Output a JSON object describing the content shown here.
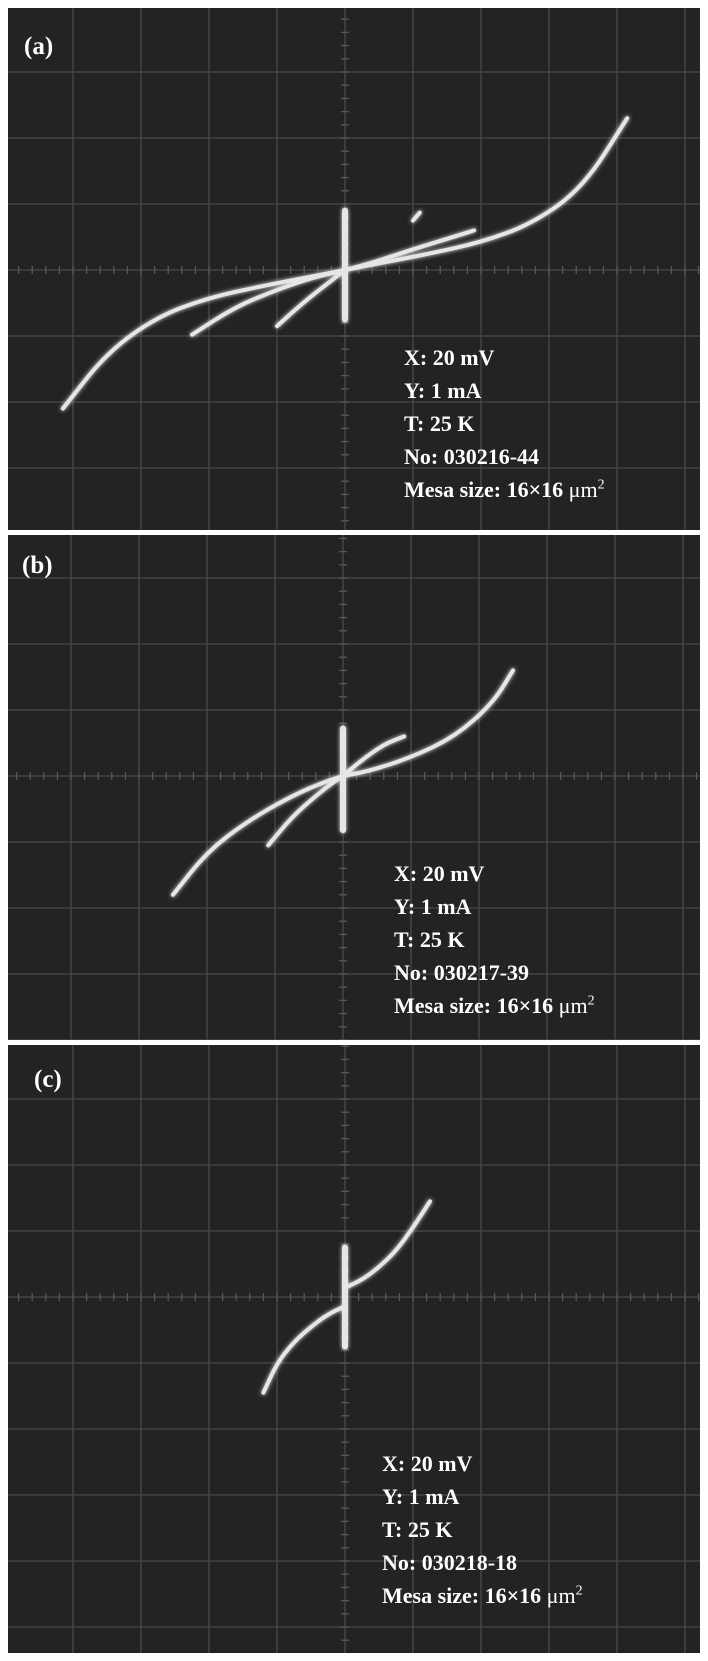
{
  "chart_data": [
    {
      "type": "line",
      "panel_label": "(a)",
      "settings": {
        "x_scale": "X: 20 mV",
        "y_scale": "Y:  1  mA",
        "temperature": "T:  25 K",
        "sample_no": "No: 030216-44",
        "mesa_prefix": "Mesa size: 16×16 ",
        "mesa_mu": "μ",
        "mesa_unit": "m",
        "mesa_exp": "2"
      },
      "axes": {
        "x_unit": "mV",
        "y_unit": "mA",
        "x_per_div": 20,
        "y_per_div": 1,
        "xlim": [
          -100,
          100
        ],
        "ylim": [
          -4,
          4
        ],
        "grid": true
      },
      "series": [
        {
          "x": [
            -83,
            -70,
            -55,
            -40,
            -25,
            -12,
            -4,
            0
          ],
          "y": [
            -2.1,
            -1.25,
            -0.7,
            -0.42,
            -0.25,
            -0.12,
            -0.04,
            0
          ]
        },
        {
          "x": [
            0,
            4,
            12,
            25,
            40,
            55,
            70,
            83
          ],
          "y": [
            0,
            0.04,
            0.12,
            0.25,
            0.42,
            0.7,
            1.25,
            2.3
          ]
        },
        {
          "x": [
            -45,
            -32,
            -20,
            -10,
            0
          ],
          "y": [
            -0.98,
            -0.55,
            -0.3,
            -0.12,
            0
          ]
        },
        {
          "x": [
            -20,
            -12,
            -5,
            0
          ],
          "y": [
            -0.85,
            -0.48,
            -0.2,
            0
          ]
        },
        {
          "x": [
            0,
            8,
            18,
            28,
            38
          ],
          "y": [
            0,
            0.11,
            0.28,
            0.44,
            0.6
          ]
        },
        {
          "x": [
            20,
            22
          ],
          "y": [
            0.75,
            0.87
          ]
        },
        {
          "x": [
            0,
            0
          ],
          "y": [
            -0.75,
            0.9
          ]
        }
      ]
    },
    {
      "type": "line",
      "panel_label": "(b)",
      "settings": {
        "x_scale": "X: 20 mV",
        "y_scale": "Y:  1  mA",
        "temperature": "T:  25 K",
        "sample_no": "No: 030217-39",
        "mesa_prefix": "Mesa size: 16×16 ",
        "mesa_mu": "μ",
        "mesa_unit": "m",
        "mesa_exp": "2"
      },
      "axes": {
        "x_unit": "mV",
        "y_unit": "mA",
        "x_per_div": 20,
        "y_per_div": 1,
        "xlim": [
          -100,
          100
        ],
        "ylim": [
          -4,
          4
        ],
        "grid": true
      },
      "series": [
        {
          "x": [
            -50,
            -40,
            -28,
            -15,
            -5,
            0
          ],
          "y": [
            -1.8,
            -1.15,
            -0.68,
            -0.3,
            -0.08,
            0
          ]
        },
        {
          "x": [
            0,
            8,
            20,
            33,
            44,
            50
          ],
          "y": [
            0,
            0.08,
            0.28,
            0.6,
            1.1,
            1.6
          ]
        },
        {
          "x": [
            -22,
            -15,
            -8,
            -3,
            0
          ],
          "y": [
            -1.05,
            -0.62,
            -0.3,
            -0.1,
            0
          ]
        },
        {
          "x": [
            0,
            5,
            12,
            18
          ],
          "y": [
            0,
            0.22,
            0.48,
            0.6
          ]
        },
        {
          "x": [
            0,
            0
          ],
          "y": [
            -0.82,
            0.72
          ]
        }
      ]
    },
    {
      "type": "line",
      "panel_label": "(c)",
      "settings": {
        "x_scale": "X: 20 mV",
        "y_scale": "Y:  1  mA",
        "temperature": "T:  25 K",
        "sample_no": "No: 030218-18",
        "mesa_prefix": "Mesa size: 16×16 ",
        "mesa_mu": "μ",
        "mesa_unit": "m",
        "mesa_exp": "2"
      },
      "axes": {
        "x_unit": "mV",
        "y_unit": "mA",
        "x_per_div": 20,
        "y_per_div": 1,
        "xlim": [
          -100,
          100
        ],
        "ylim": [
          -4,
          4
        ],
        "grid": true
      },
      "series": [
        {
          "x": [
            -24,
            -20,
            -15,
            -10,
            -5,
            0
          ],
          "y": [
            -1.45,
            -1.0,
            -0.68,
            -0.45,
            -0.26,
            -0.14
          ]
        },
        {
          "x": [
            0,
            5,
            10,
            15,
            20,
            25
          ],
          "y": [
            0.14,
            0.26,
            0.45,
            0.7,
            1.05,
            1.45
          ]
        },
        {
          "x": [
            0,
            0
          ],
          "y": [
            -0.75,
            0.75
          ]
        }
      ]
    }
  ]
}
